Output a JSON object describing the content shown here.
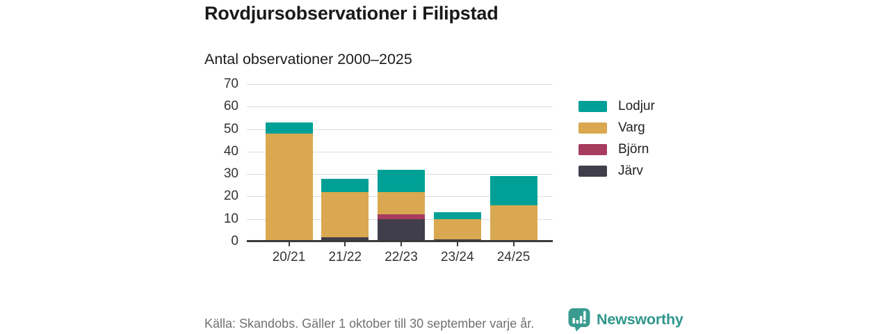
{
  "header": {
    "title": "Rovdjursobservationer i Filipstad",
    "subtitle": "Antal observationer 2000–2025"
  },
  "chart_data": {
    "type": "bar",
    "stacked": true,
    "title": "Rovdjursobservationer i Filipstad",
    "subtitle": "Antal observationer 2000–2025",
    "categories": [
      "20/21",
      "21/22",
      "22/23",
      "23/24",
      "24/25"
    ],
    "series": [
      {
        "name": "Lodjur",
        "color": "#00A096",
        "values": [
          5,
          6,
          10,
          3,
          13
        ]
      },
      {
        "name": "Varg",
        "color": "#D9A850",
        "values": [
          48,
          20,
          10,
          9,
          16
        ]
      },
      {
        "name": "Björn",
        "color": "#A73C5F",
        "values": [
          0,
          0,
          2,
          0,
          0
        ]
      },
      {
        "name": "Järv",
        "color": "#413E4B",
        "values": [
          0,
          2,
          10,
          1,
          0
        ]
      }
    ],
    "stack_order_bottom_to_top": [
      "Järv",
      "Björn",
      "Varg",
      "Lodjur"
    ],
    "xlabel": "",
    "ylabel": "",
    "ylim": [
      0,
      70
    ],
    "ytick_step": 10,
    "yticks": [
      0,
      10,
      20,
      30,
      40,
      50,
      60,
      70
    ],
    "grid": "horizontal",
    "legend_position": "right"
  },
  "footer": {
    "source": "Källa: Skandobs. Gäller 1 oktober till 30 september varje år.",
    "brand": "Newsworthy",
    "brand_color": "#2F968B",
    "logo_color": "#3A9B90"
  }
}
